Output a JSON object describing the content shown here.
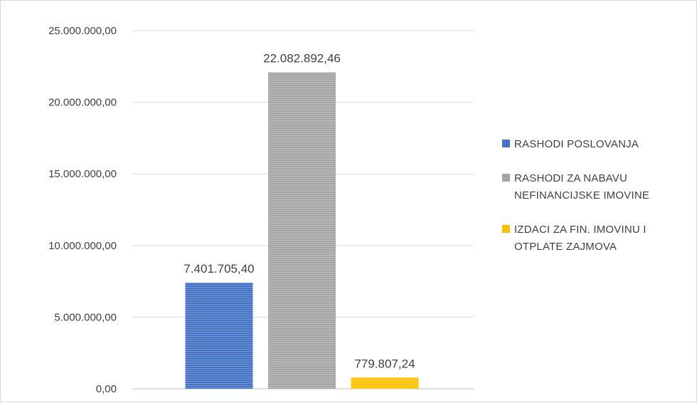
{
  "chart_data": {
    "type": "bar",
    "categories": [
      "RASHODI POSLOVANJA",
      "RASHODI ZA NABAVU NEFINANCIJSKE IMOVINE",
      "IZDACI ZA FIN. IMOVINU I OTPLATE ZAJMOVA"
    ],
    "values": [
      7401705.4,
      22082892.46,
      779807.24
    ],
    "data_labels": [
      "7.401.705,40",
      "22.082.892,46",
      "779.807,24"
    ],
    "colors": [
      "#4472c4",
      "#a5a5a5",
      "#ffc000"
    ],
    "ylim": [
      0,
      25000000
    ],
    "yticks": [
      0,
      5000000,
      10000000,
      15000000,
      20000000,
      25000000
    ],
    "ytick_labels": [
      "0,00",
      "5.000.000,00",
      "10.000.000,00",
      "15.000.000,00",
      "20.000.000,00",
      "25.000.000,00"
    ],
    "grid": true,
    "legend_position": "right",
    "legend": [
      {
        "lines": [
          "RASHODI POSLOVANJA"
        ]
      },
      {
        "lines": [
          "RASHODI ZA NABAVU",
          "NEFINANCIJSKE IMOVINE"
        ]
      },
      {
        "lines": [
          "IZDACI ZA FIN. IMOVINU I",
          "OTPLATE ZAJMOVA"
        ]
      }
    ]
  }
}
